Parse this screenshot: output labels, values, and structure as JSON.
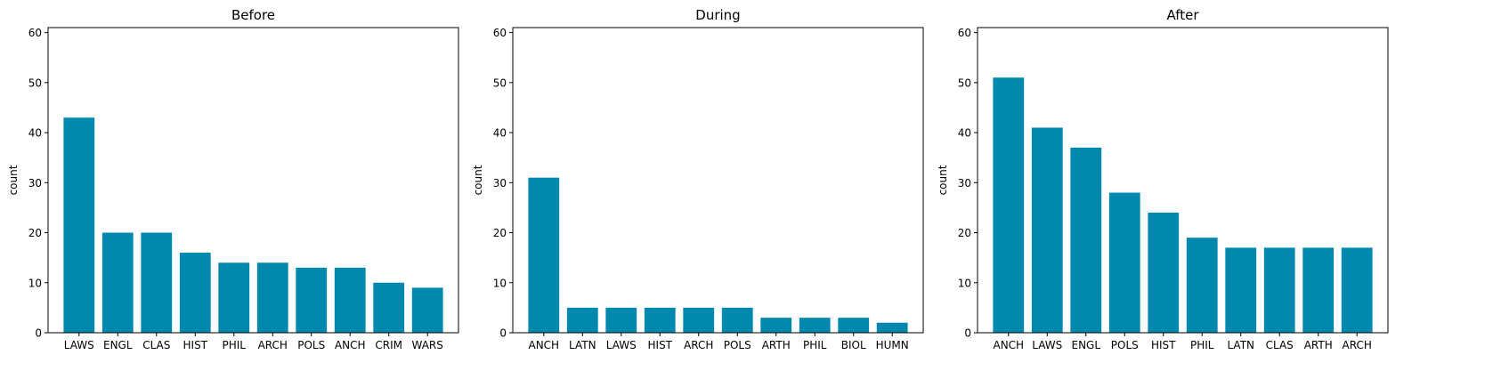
{
  "chart_data": [
    {
      "type": "bar",
      "title": "Before",
      "xlabel": "",
      "ylabel": "count",
      "ylim": [
        0,
        61
      ],
      "yticks": [
        0,
        10,
        20,
        30,
        40,
        50,
        60
      ],
      "grid": false,
      "bar_color": "#0088ae",
      "categories": [
        "LAWS",
        "ENGL",
        "CLAS",
        "HIST",
        "PHIL",
        "ARCH",
        "POLS",
        "ANCH",
        "CRIM",
        "WARS"
      ],
      "values": [
        43,
        20,
        20,
        16,
        14,
        14,
        13,
        13,
        10,
        9
      ]
    },
    {
      "type": "bar",
      "title": "During",
      "xlabel": "",
      "ylabel": "count",
      "ylim": [
        0,
        61
      ],
      "yticks": [
        0,
        10,
        20,
        30,
        40,
        50,
        60
      ],
      "grid": false,
      "bar_color": "#0088ae",
      "categories": [
        "ANCH",
        "LATN",
        "LAWS",
        "HIST",
        "ARCH",
        "POLS",
        "ARTH",
        "PHIL",
        "BIOL",
        "HUMN"
      ],
      "values": [
        31,
        5,
        5,
        5,
        5,
        5,
        3,
        3,
        3,
        2
      ]
    },
    {
      "type": "bar",
      "title": "After",
      "xlabel": "",
      "ylabel": "count",
      "ylim": [
        0,
        61
      ],
      "yticks": [
        0,
        10,
        20,
        30,
        40,
        50,
        60
      ],
      "grid": false,
      "bar_color": "#0088ae",
      "categories": [
        "ANCH",
        "LAWS",
        "ENGL",
        "POLS",
        "HIST",
        "PHIL",
        "LATN",
        "CLAS",
        "ARTH",
        "ARCH"
      ],
      "values": [
        51,
        41,
        37,
        28,
        24,
        19,
        17,
        17,
        17,
        17
      ]
    }
  ]
}
